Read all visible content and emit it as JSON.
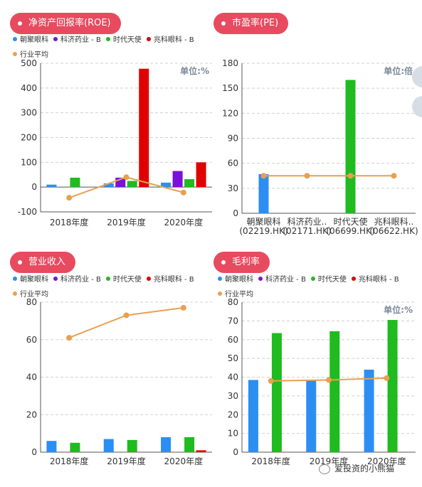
{
  "colors": {
    "pill": "#e84a5f",
    "series": [
      "#2b8ef2",
      "#7b10d8",
      "#1fbb1f",
      "#e00000"
    ],
    "avg": "#e8a050",
    "grid": "#d0d0d0"
  },
  "legend": {
    "series": [
      "朝聚眼科",
      "科济药业 - B",
      "时代天使",
      "兆科眼科 - B"
    ],
    "avg": "行业平均"
  },
  "watermark": "爱投资的小熊猫",
  "chart_data": [
    {
      "id": "roe",
      "type": "bar",
      "title": "净资产回报率(ROE)",
      "unit_label": "单位:%",
      "categories": [
        "2018年度",
        "2019年度",
        "2020年度"
      ],
      "series": [
        {
          "name": "朝聚眼科",
          "values": [
            10,
            15,
            18
          ]
        },
        {
          "name": "科济药业 - B",
          "values": [
            null,
            38,
            65
          ]
        },
        {
          "name": "时代天使",
          "values": [
            38,
            25,
            32
          ]
        },
        {
          "name": "兆科眼科 - B",
          "values": [
            null,
            478,
            100
          ]
        }
      ],
      "avg": {
        "name": "行业平均",
        "values": [
          -43,
          40,
          -22
        ]
      },
      "ylim": [
        -100,
        500
      ],
      "yticks": [
        -100,
        0,
        100,
        200,
        300,
        400,
        500
      ],
      "grid": true
    },
    {
      "id": "pe",
      "type": "bar",
      "title": "市盈率(PE)",
      "unit_label": "单位:倍",
      "categories": [
        "朝聚眼科",
        "科济药业..",
        "时代天使",
        "兆科眼科.."
      ],
      "categories_sub": [
        "(02219.HK)",
        "(02171.HK)",
        "(06699.HK)",
        "(06622.HK)"
      ],
      "values": [
        47,
        null,
        160,
        null
      ],
      "avg": {
        "name": "行业平均",
        "values": [
          45,
          45,
          45,
          45
        ]
      },
      "ylim": [
        0,
        180
      ],
      "yticks": [
        0,
        30,
        60,
        90,
        120,
        150,
        180
      ],
      "grid": true
    },
    {
      "id": "revenue",
      "type": "bar",
      "title": "营业收入",
      "unit_label": "",
      "categories": [
        "2018年度",
        "2019年度",
        "2020年度"
      ],
      "series": [
        {
          "name": "朝聚眼科",
          "values": [
            6,
            7,
            8
          ]
        },
        {
          "name": "科济药业 - B",
          "values": [
            null,
            null,
            null
          ]
        },
        {
          "name": "时代天使",
          "values": [
            5,
            6.5,
            8
          ]
        },
        {
          "name": "兆科眼科 - B",
          "values": [
            null,
            null,
            1
          ]
        }
      ],
      "avg": {
        "name": "行业平均",
        "values": [
          61,
          73,
          77
        ]
      },
      "ylim": [
        0,
        80
      ],
      "yticks": [
        0,
        20,
        40,
        60,
        80
      ],
      "grid": true
    },
    {
      "id": "gross",
      "type": "bar",
      "title": "毛利率",
      "unit_label": "单位:%",
      "categories": [
        "2018年度",
        "2019年度",
        "2020年度"
      ],
      "series": [
        {
          "name": "朝聚眼科",
          "values": [
            38.5,
            38.5,
            44
          ]
        },
        {
          "name": "科济药业 - B",
          "values": [
            null,
            null,
            null
          ]
        },
        {
          "name": "时代天使",
          "values": [
            63.5,
            64.5,
            70.5
          ]
        },
        {
          "name": "兆科眼科 - B",
          "values": [
            null,
            null,
            null
          ]
        }
      ],
      "avg": {
        "name": "行业平均",
        "values": [
          38,
          38.5,
          39.5
        ]
      },
      "ylim": [
        0,
        80
      ],
      "yticks": [
        0,
        10,
        20,
        30,
        40,
        50,
        60,
        70,
        80
      ],
      "grid": true
    }
  ]
}
